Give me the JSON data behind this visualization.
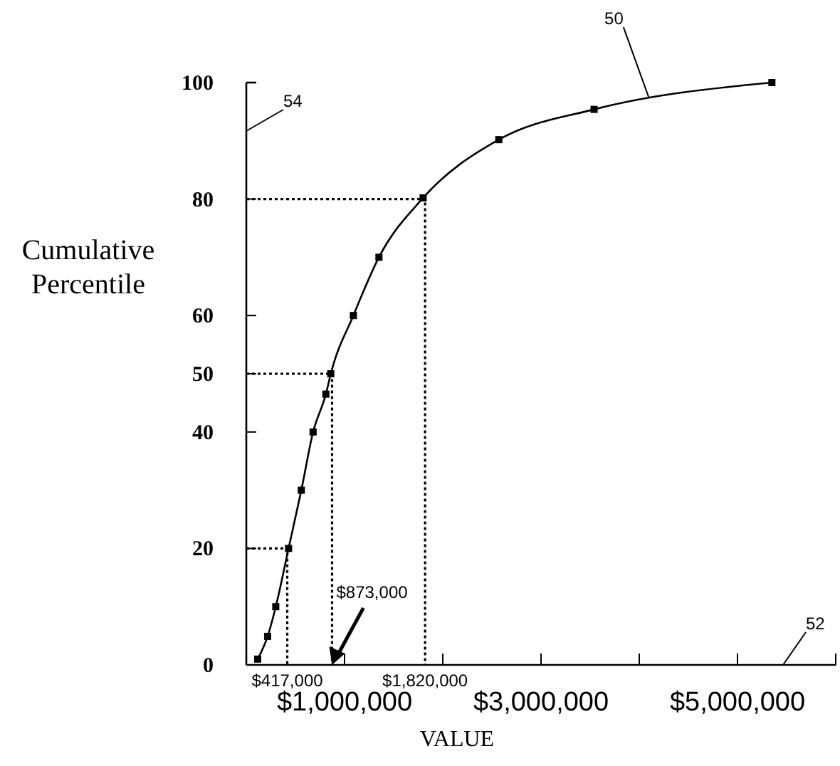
{
  "chart_data": {
    "type": "line",
    "xlabel": "VALUE",
    "ylabel": "Cumulative Percentile",
    "x": [
      116000,
      217000,
      300000,
      430000,
      560000,
      680000,
      810000,
      860000,
      1090000,
      1350000,
      1800000,
      2570000,
      3540000,
      5350000
    ],
    "series": [
      {
        "color": "#000000",
        "values": [
          1,
          4.9,
          10,
          20,
          30,
          40,
          46.5,
          50,
          60,
          70,
          80.2,
          90.2,
          95.4,
          100
        ]
      },
      {
        "color": "#000000",
        "x": [
          0,
          417000,
          417000
        ],
        "values": [
          20,
          20,
          0
        ],
        "line_style": "dotted",
        "marker": "none"
      },
      {
        "color": "#000000",
        "x": [
          0,
          873000,
          873000
        ],
        "values": [
          50,
          50,
          0
        ],
        "line_style": "dotted",
        "marker": "none"
      },
      {
        "color": "#000000",
        "x": [
          0,
          1820000,
          1820000
        ],
        "values": [
          80,
          80,
          0
        ],
        "line_style": "dotted",
        "marker": "none"
      }
    ],
    "xlim": [
      0,
      6000000
    ],
    "xticks": [
      {
        "value": 0,
        "label": null
      },
      {
        "value": 1000000,
        "label": "$1,000,000"
      },
      {
        "value": 2000000,
        "label": null
      },
      {
        "value": 3000000,
        "label": "$3,000,000"
      },
      {
        "value": 4000000,
        "label": null
      },
      {
        "value": 5000000,
        "label": "$5,000,000"
      },
      {
        "value": 6000000,
        "label": null
      }
    ],
    "ylim": [
      0,
      100
    ],
    "yticks": [
      0,
      20,
      40,
      50,
      60,
      80,
      100
    ],
    "marker": "square",
    "line_style": "solid",
    "grid": false,
    "annotations": [
      {
        "text": "$417,000",
        "x": 417000,
        "y": 0
      },
      {
        "text": "$873,000",
        "x": 873000,
        "y": 0
      },
      {
        "text": "$1,820,000",
        "x": 1820000,
        "y": 0
      },
      {
        "text": "50",
        "x": 4100000,
        "y": 97.3
      },
      "52",
      "54"
    ]
  }
}
